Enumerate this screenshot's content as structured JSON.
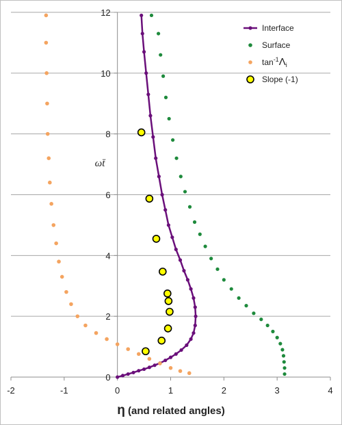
{
  "chart_data": {
    "type": "scatter",
    "xlabel_symbol": "η",
    "xlabel_rest": " (and related angles)",
    "ylabel": "ωt̄",
    "xlim": [
      -2,
      4
    ],
    "ylim": [
      0,
      12
    ],
    "xticks": [
      -2,
      -1,
      0,
      1,
      2,
      3,
      4
    ],
    "yticks": [
      0,
      2,
      4,
      6,
      8,
      10,
      12
    ],
    "grid": "horizontal",
    "legend_position": "top-right",
    "legend": [
      {
        "label": "Interface",
        "style": "line-markers",
        "color": "#6a0f7a"
      },
      {
        "label": "Surface",
        "style": "markers",
        "color": "#1e8a3c"
      },
      {
        "label_pre": "tan",
        "label_sup": "-1",
        "label_post": "Λ",
        "label_sub": "i",
        "style": "markers",
        "color": "#f4a460"
      },
      {
        "label": "Slope (-1)",
        "style": "big-markers",
        "color": "#ffff00",
        "edge": "#000000"
      }
    ],
    "series": [
      {
        "name": "Interface",
        "color": "#6a0f7a",
        "points": [
          [
            0.0,
            0.0
          ],
          [
            0.1,
            0.05
          ],
          [
            0.2,
            0.1
          ],
          [
            0.3,
            0.15
          ],
          [
            0.4,
            0.21
          ],
          [
            0.5,
            0.26
          ],
          [
            0.6,
            0.32
          ],
          [
            0.7,
            0.39
          ],
          [
            0.8,
            0.46
          ],
          [
            0.9,
            0.55
          ],
          [
            1.0,
            0.65
          ],
          [
            1.1,
            0.76
          ],
          [
            1.2,
            0.89
          ],
          [
            1.3,
            1.05
          ],
          [
            1.38,
            1.25
          ],
          [
            1.43,
            1.45
          ],
          [
            1.46,
            1.7
          ],
          [
            1.47,
            2.0
          ],
          [
            1.46,
            2.3
          ],
          [
            1.43,
            2.6
          ],
          [
            1.38,
            2.9
          ],
          [
            1.32,
            3.2
          ],
          [
            1.25,
            3.5
          ],
          [
            1.18,
            3.85
          ],
          [
            1.1,
            4.2
          ],
          [
            1.03,
            4.6
          ],
          [
            0.96,
            5.0
          ],
          [
            0.9,
            5.5
          ],
          [
            0.84,
            6.0
          ],
          [
            0.78,
            6.6
          ],
          [
            0.72,
            7.2
          ],
          [
            0.67,
            7.9
          ],
          [
            0.62,
            8.6
          ],
          [
            0.58,
            9.3
          ],
          [
            0.54,
            10.0
          ],
          [
            0.5,
            10.7
          ],
          [
            0.47,
            11.3
          ],
          [
            0.45,
            11.9
          ]
        ]
      },
      {
        "name": "Surface",
        "color": "#1e8a3c",
        "points": [
          [
            3.14,
            0.1
          ],
          [
            3.14,
            0.3
          ],
          [
            3.13,
            0.5
          ],
          [
            3.12,
            0.7
          ],
          [
            3.1,
            0.9
          ],
          [
            3.06,
            1.1
          ],
          [
            3.0,
            1.3
          ],
          [
            2.92,
            1.5
          ],
          [
            2.82,
            1.7
          ],
          [
            2.7,
            1.9
          ],
          [
            2.56,
            2.1
          ],
          [
            2.42,
            2.35
          ],
          [
            2.28,
            2.6
          ],
          [
            2.14,
            2.9
          ],
          [
            2.0,
            3.2
          ],
          [
            1.88,
            3.55
          ],
          [
            1.76,
            3.9
          ],
          [
            1.65,
            4.3
          ],
          [
            1.55,
            4.7
          ],
          [
            1.45,
            5.1
          ],
          [
            1.36,
            5.6
          ],
          [
            1.27,
            6.1
          ],
          [
            1.19,
            6.6
          ],
          [
            1.11,
            7.2
          ],
          [
            1.04,
            7.8
          ],
          [
            0.97,
            8.5
          ],
          [
            0.91,
            9.2
          ],
          [
            0.86,
            9.9
          ],
          [
            0.81,
            10.6
          ],
          [
            0.77,
            11.3
          ],
          [
            0.64,
            11.9
          ]
        ]
      },
      {
        "name": "tan⁻¹Λi",
        "color": "#f4a460",
        "points": [
          [
            1.35,
            0.13
          ],
          [
            1.18,
            0.2
          ],
          [
            1.0,
            0.3
          ],
          [
            0.8,
            0.45
          ],
          [
            0.6,
            0.6
          ],
          [
            0.4,
            0.76
          ],
          [
            0.2,
            0.92
          ],
          [
            0.0,
            1.08
          ],
          [
            -0.2,
            1.25
          ],
          [
            -0.4,
            1.45
          ],
          [
            -0.6,
            1.7
          ],
          [
            -0.75,
            2.0
          ],
          [
            -0.87,
            2.4
          ],
          [
            -0.96,
            2.8
          ],
          [
            -1.04,
            3.3
          ],
          [
            -1.1,
            3.8
          ],
          [
            -1.15,
            4.4
          ],
          [
            -1.2,
            5.0
          ],
          [
            -1.24,
            5.7
          ],
          [
            -1.27,
            6.4
          ],
          [
            -1.29,
            7.2
          ],
          [
            -1.31,
            8.0
          ],
          [
            -1.32,
            9.0
          ],
          [
            -1.33,
            10.0
          ],
          [
            -1.34,
            11.0
          ],
          [
            -1.34,
            11.9
          ]
        ]
      },
      {
        "name": "Slope (-1)",
        "color": "#ffff00",
        "points": [
          [
            0.45,
            8.05
          ],
          [
            0.6,
            5.87
          ],
          [
            0.73,
            4.55
          ],
          [
            0.85,
            3.47
          ],
          [
            0.94,
            2.75
          ],
          [
            0.96,
            2.5
          ],
          [
            0.98,
            2.15
          ],
          [
            0.95,
            1.6
          ],
          [
            0.83,
            1.2
          ],
          [
            0.53,
            0.85
          ]
        ]
      }
    ]
  }
}
